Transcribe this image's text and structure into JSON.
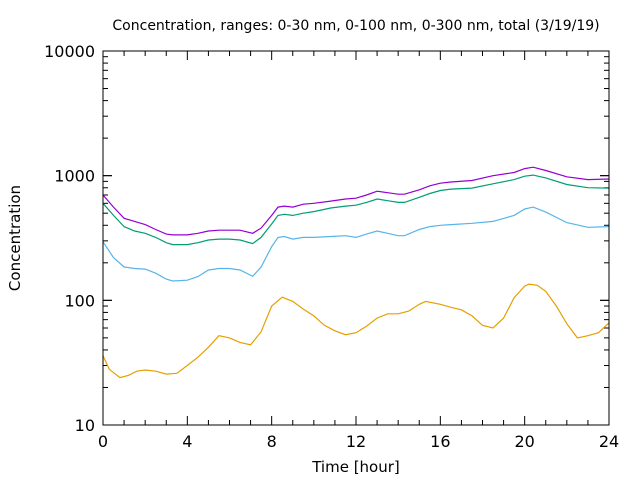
{
  "chart_data": {
    "type": "line",
    "title": "Concentration, ranges: 0-30 nm, 0-100 nm, 0-300 nm, total (3/19/19)",
    "xlabel": "Time [hour]",
    "ylabel": "Concentration",
    "xlim": [
      0,
      24
    ],
    "ylim": [
      10,
      10000
    ],
    "yscale": "log",
    "xticks": [
      0,
      4,
      8,
      12,
      16,
      20,
      24
    ],
    "xtick_labels": [
      "0",
      "4",
      "8",
      "12",
      "16",
      "20",
      "24"
    ],
    "yticks": [
      10,
      100,
      1000,
      10000
    ],
    "ytick_labels": [
      "10",
      "100",
      "1000",
      "10000"
    ],
    "grid": false,
    "legend": "none",
    "series": [
      {
        "name": "total",
        "color": "#9400d3",
        "x": [
          0,
          0.5,
          1,
          1.5,
          2,
          2.5,
          3,
          3.3,
          4,
          4.5,
          5,
          5.5,
          6,
          6.5,
          7.1,
          7.5,
          8,
          8.3,
          8.6,
          9,
          9.5,
          10,
          10.8,
          11.5,
          12,
          12.5,
          13,
          13.5,
          14,
          14.3,
          15,
          15.5,
          16,
          16.5,
          17.5,
          18.5,
          19.5,
          20,
          20.4,
          21,
          22,
          23,
          24
        ],
        "values": [
          700,
          560,
          455,
          430,
          405,
          370,
          340,
          335,
          335,
          345,
          360,
          365,
          365,
          365,
          345,
          380,
          480,
          560,
          570,
          560,
          590,
          600,
          625,
          650,
          660,
          700,
          750,
          730,
          710,
          710,
          770,
          830,
          870,
          890,
          915,
          1000,
          1060,
          1140,
          1170,
          1100,
          980,
          930,
          940
        ]
      },
      {
        "name": "0-300 nm",
        "color": "#009e73",
        "x": [
          0,
          0.5,
          1,
          1.5,
          2,
          2.5,
          3,
          3.3,
          4,
          4.5,
          5,
          5.5,
          6,
          6.5,
          7.1,
          7.5,
          8,
          8.3,
          8.6,
          9,
          9.5,
          10,
          10.8,
          11.5,
          12,
          12.5,
          13,
          13.5,
          14,
          14.3,
          15,
          15.5,
          16,
          16.5,
          17.5,
          18.5,
          19.5,
          20,
          20.4,
          21,
          22,
          23,
          24
        ],
        "values": [
          600,
          480,
          390,
          360,
          345,
          320,
          290,
          280,
          280,
          290,
          305,
          310,
          310,
          305,
          285,
          320,
          410,
          480,
          490,
          480,
          500,
          515,
          550,
          570,
          580,
          610,
          650,
          630,
          610,
          610,
          670,
          720,
          760,
          780,
          795,
          860,
          930,
          990,
          1010,
          960,
          850,
          800,
          795
        ]
      },
      {
        "name": "0-100 nm",
        "color": "#56b4e9",
        "x": [
          0,
          0.5,
          1,
          1.5,
          2,
          2.5,
          3,
          3.3,
          4,
          4.5,
          5,
          5.5,
          6,
          6.5,
          7.1,
          7.5,
          8,
          8.3,
          8.6,
          9,
          9.5,
          10,
          10.8,
          11.5,
          12,
          12.5,
          13,
          13.5,
          14,
          14.3,
          15,
          15.5,
          16,
          16.5,
          17.5,
          18.5,
          19.5,
          20,
          20.4,
          21,
          22,
          23,
          24
        ],
        "values": [
          295,
          220,
          185,
          180,
          178,
          165,
          148,
          143,
          145,
          155,
          175,
          180,
          180,
          175,
          156,
          185,
          270,
          320,
          325,
          310,
          320,
          320,
          325,
          330,
          320,
          340,
          360,
          345,
          330,
          330,
          370,
          390,
          400,
          405,
          415,
          430,
          480,
          540,
          560,
          510,
          420,
          385,
          390
        ]
      },
      {
        "name": "0-30 nm",
        "color": "#e69f00",
        "x": [
          0,
          0.3,
          0.8,
          1.2,
          1.6,
          2,
          2.5,
          3,
          3.5,
          4,
          4.5,
          5,
          5.5,
          6,
          6.5,
          7,
          7.5,
          8,
          8.5,
          9,
          9.5,
          10,
          10.5,
          11,
          11.5,
          12,
          12.5,
          13,
          13.5,
          14,
          14.5,
          15,
          15.3,
          16,
          16.5,
          17,
          17.5,
          18,
          18.5,
          19,
          19.5,
          20,
          20.2,
          20.6,
          21,
          21.5,
          22,
          22.5,
          23,
          23.5,
          24
        ],
        "values": [
          36,
          28,
          24,
          25,
          27,
          27.6,
          27,
          25.6,
          26,
          30,
          35,
          42,
          52,
          50,
          46,
          44,
          56,
          90,
          106,
          98,
          85,
          75,
          63,
          57,
          53,
          55,
          62,
          72,
          78,
          78,
          82,
          93,
          98,
          93,
          88,
          84,
          75,
          63,
          60,
          72,
          105,
          130,
          135,
          132,
          118,
          90,
          65,
          50,
          52,
          55,
          66
        ]
      }
    ]
  }
}
